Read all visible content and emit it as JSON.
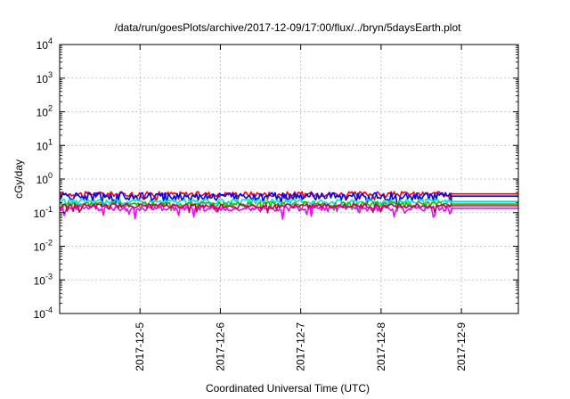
{
  "chart_data": {
    "type": "line",
    "title": "/data/run/goesPlots/archive/2017-12-09/17:00/flux/../bryn/5daysEarth.plot",
    "xlabel": "Coordinated Universal Time (UTC)",
    "ylabel": "cGy/day",
    "yscale": "log",
    "ylim": [
      0.0001,
      10000
    ],
    "y_ticks": [
      {
        "value": 0.0001,
        "base": "10",
        "exp": "-4"
      },
      {
        "value": 0.001,
        "base": "10",
        "exp": "-3"
      },
      {
        "value": 0.01,
        "base": "10",
        "exp": "-2"
      },
      {
        "value": 0.1,
        "base": "10",
        "exp": "-1"
      },
      {
        "value": 1,
        "base": "10",
        "exp": "0"
      },
      {
        "value": 10,
        "base": "10",
        "exp": "1"
      },
      {
        "value": 100,
        "base": "10",
        "exp": "2"
      },
      {
        "value": 1000,
        "base": "10",
        "exp": "3"
      },
      {
        "value": 10000,
        "base": "10",
        "exp": "4"
      }
    ],
    "xlim": [
      "2017-12-04 00:00",
      "2017-12-09 17:00"
    ],
    "x_ticks": [
      "2017-12-5",
      "2017-12-6",
      "2017-12-7",
      "2017-12-8",
      "2017-12-9"
    ],
    "x_tick_dates": [
      "2017-12-05",
      "2017-12-06",
      "2017-12-07",
      "2017-12-08",
      "2017-12-09"
    ],
    "grid": true,
    "data_end": "2017-12-08 21:00",
    "series": [
      {
        "color": "#ff0000",
        "base": 0.36,
        "noise": 0.05
      },
      {
        "color": "#0000ff",
        "base": 0.31,
        "noise": 0.07
      },
      {
        "color": "#00e0e0",
        "base": 0.215,
        "noise": 0.03
      },
      {
        "color": "#00cc00",
        "base": 0.18,
        "noise": 0.025
      },
      {
        "color": "#ff00ff",
        "base": 0.135,
        "noise": 0.02,
        "spikes": true
      },
      {
        "color": "#cc0044",
        "base": 0.16,
        "noise": 0.02
      }
    ]
  }
}
